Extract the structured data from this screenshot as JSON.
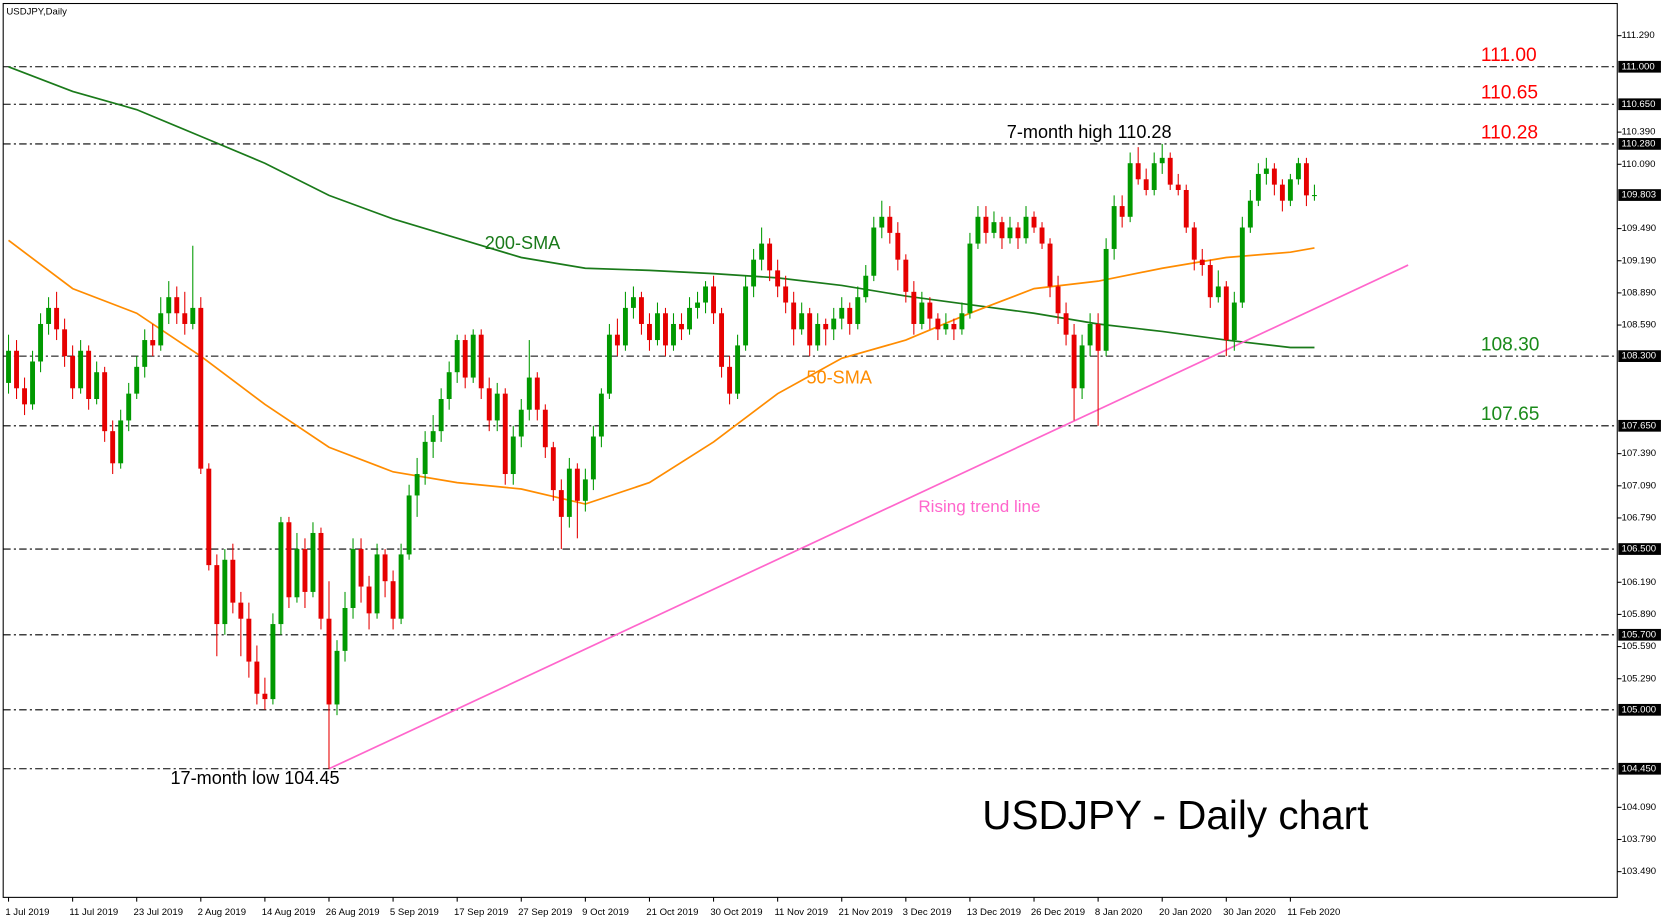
{
  "chart_data": {
    "type": "candlestick",
    "title": "USDJPY - Daily chart",
    "symbol": "USDJPY,Daily",
    "up_color": "#009900",
    "down_color": "#e60000",
    "ylim": [
      103.25,
      111.59
    ],
    "yticks": [
      {
        "value": 111.29,
        "label": "111.290"
      },
      {
        "value": 110.39,
        "label": "110.390"
      },
      {
        "value": 110.09,
        "label": "110.090"
      },
      {
        "value": 109.49,
        "label": "109.490"
      },
      {
        "value": 109.19,
        "label": "109.190"
      },
      {
        "value": 108.89,
        "label": "108.890"
      },
      {
        "value": 108.59,
        "label": "108.590"
      },
      {
        "value": 107.39,
        "label": "107.390"
      },
      {
        "value": 107.09,
        "label": "107.090"
      },
      {
        "value": 106.79,
        "label": "106.790"
      },
      {
        "value": 106.19,
        "label": "106.190"
      },
      {
        "value": 105.89,
        "label": "105.890"
      },
      {
        "value": 105.59,
        "label": "105.590"
      },
      {
        "value": 105.29,
        "label": "105.290"
      },
      {
        "value": 104.09,
        "label": "104.090"
      },
      {
        "value": 103.79,
        "label": "103.790"
      },
      {
        "value": 103.49,
        "label": "103.490"
      }
    ],
    "levels": [
      {
        "value": 111.0,
        "label": "111.000",
        "note": "111.00",
        "note_color": "#ff0000"
      },
      {
        "value": 110.65,
        "label": "110.650",
        "note": "110.65",
        "note_color": "#ff0000"
      },
      {
        "value": 110.28,
        "label": "110.280",
        "note": "110.28",
        "note_color": "#ff0000"
      },
      {
        "value": 108.3,
        "label": "108.300",
        "note": "108.30",
        "note_color": "#1a8a1a"
      },
      {
        "value": 107.65,
        "label": "107.650",
        "note": "107.65",
        "note_color": "#1a8a1a"
      },
      {
        "value": 106.5,
        "label": "106.500"
      },
      {
        "value": 105.7,
        "label": "105.700"
      },
      {
        "value": 105.0,
        "label": "105.000"
      },
      {
        "value": 104.45,
        "label": "104.450"
      }
    ],
    "current_price": {
      "value": 109.803,
      "label": "109.803"
    },
    "annotations": [
      {
        "text": "7-month high 110.28",
        "value": 110.28
      },
      {
        "text": "17-month low 104.45",
        "value": 104.45
      }
    ],
    "categories": [
      "1 Jul 2019",
      null,
      null,
      null,
      null,
      null,
      null,
      null,
      "11 Jul 2019",
      null,
      null,
      null,
      null,
      null,
      null,
      null,
      "23 Jul 2019",
      null,
      null,
      null,
      null,
      null,
      null,
      null,
      "2 Aug 2019",
      null,
      null,
      null,
      null,
      null,
      null,
      null,
      "14 Aug 2019",
      null,
      null,
      null,
      null,
      null,
      null,
      null,
      "26 Aug 2019",
      null,
      null,
      null,
      null,
      null,
      null,
      null,
      "5 Sep 2019",
      null,
      null,
      null,
      null,
      null,
      null,
      null,
      "17 Sep 2019",
      null,
      null,
      null,
      null,
      null,
      null,
      null,
      "27 Sep 2019",
      null,
      null,
      null,
      null,
      null,
      null,
      null,
      "9 Oct 2019",
      null,
      null,
      null,
      null,
      null,
      null,
      null,
      "21 Oct 2019",
      null,
      null,
      null,
      null,
      null,
      null,
      null,
      "30 Oct 2019",
      null,
      null,
      null,
      null,
      null,
      null,
      null,
      "11 Nov 2019",
      null,
      null,
      null,
      null,
      null,
      null,
      null,
      "21 Nov 2019",
      null,
      null,
      null,
      null,
      null,
      null,
      null,
      "3 Dec 2019",
      null,
      null,
      null,
      null,
      null,
      null,
      null,
      "13 Dec 2019",
      null,
      null,
      null,
      null,
      null,
      null,
      null,
      "26 Dec 2019",
      null,
      null,
      null,
      null,
      null,
      null,
      null,
      "8 Jan 2020",
      null,
      null,
      null,
      null,
      null,
      null,
      null,
      "20 Jan 2020",
      null,
      null,
      null,
      null,
      null,
      null,
      null,
      "30 Jan 2020",
      null,
      null,
      null,
      null,
      null,
      null,
      null,
      "11 Feb 2020",
      null,
      null,
      null
    ],
    "ohlc": [
      [
        108.05,
        108.5,
        107.95,
        108.35
      ],
      [
        108.35,
        108.45,
        107.9,
        108.0
      ],
      [
        108.0,
        108.1,
        107.75,
        107.85
      ],
      [
        107.85,
        108.35,
        107.8,
        108.25
      ],
      [
        108.25,
        108.7,
        108.15,
        108.6
      ],
      [
        108.6,
        108.85,
        108.5,
        108.75
      ],
      [
        108.75,
        108.9,
        108.45,
        108.55
      ],
      [
        108.55,
        108.65,
        108.2,
        108.3
      ],
      [
        108.3,
        108.4,
        107.9,
        108.0
      ],
      [
        108.0,
        108.45,
        107.95,
        108.35
      ],
      [
        108.35,
        108.4,
        107.8,
        107.9
      ],
      [
        107.9,
        108.25,
        107.85,
        108.15
      ],
      [
        108.15,
        108.2,
        107.5,
        107.6
      ],
      [
        107.6,
        107.7,
        107.2,
        107.3
      ],
      [
        107.3,
        107.8,
        107.25,
        107.7
      ],
      [
        107.7,
        108.05,
        107.6,
        107.95
      ],
      [
        107.95,
        108.3,
        107.9,
        108.2
      ],
      [
        108.2,
        108.55,
        108.1,
        108.45
      ],
      [
        108.45,
        108.6,
        108.3,
        108.4
      ],
      [
        108.4,
        108.85,
        108.35,
        108.7
      ],
      [
        108.7,
        109.0,
        108.6,
        108.85
      ],
      [
        108.85,
        108.95,
        108.6,
        108.7
      ],
      [
        108.7,
        108.9,
        108.5,
        108.6
      ],
      [
        108.6,
        109.33,
        108.55,
        108.75
      ],
      [
        108.75,
        108.85,
        107.2,
        107.25
      ],
      [
        107.25,
        107.3,
        106.3,
        106.35
      ],
      [
        106.35,
        106.45,
        105.5,
        105.8
      ],
      [
        105.8,
        106.5,
        105.7,
        106.4
      ],
      [
        106.4,
        106.55,
        105.9,
        106.0
      ],
      [
        106.0,
        106.1,
        105.5,
        105.85
      ],
      [
        105.85,
        106.0,
        105.3,
        105.45
      ],
      [
        105.45,
        105.6,
        105.05,
        105.15
      ],
      [
        105.15,
        105.3,
        105.0,
        105.1
      ],
      [
        105.1,
        105.9,
        105.05,
        105.8
      ],
      [
        105.8,
        106.8,
        105.7,
        106.75
      ],
      [
        106.75,
        106.8,
        105.95,
        106.05
      ],
      [
        106.05,
        106.65,
        106.0,
        106.5
      ],
      [
        106.5,
        106.6,
        105.95,
        106.1
      ],
      [
        106.1,
        106.75,
        106.05,
        106.65
      ],
      [
        106.65,
        106.7,
        105.75,
        105.85
      ],
      [
        105.85,
        106.2,
        104.45,
        105.05
      ],
      [
        105.05,
        105.65,
        104.95,
        105.55
      ],
      [
        105.55,
        106.1,
        105.45,
        105.95
      ],
      [
        105.95,
        106.6,
        105.85,
        106.5
      ],
      [
        106.5,
        106.6,
        106.0,
        106.15
      ],
      [
        106.15,
        106.25,
        105.75,
        105.9
      ],
      [
        105.9,
        106.55,
        105.85,
        106.45
      ],
      [
        106.45,
        106.5,
        106.05,
        106.2
      ],
      [
        106.2,
        106.3,
        105.75,
        105.85
      ],
      [
        105.85,
        106.55,
        105.8,
        106.45
      ],
      [
        106.45,
        107.1,
        106.4,
        107.0
      ],
      [
        107.0,
        107.35,
        106.8,
        107.2
      ],
      [
        107.2,
        107.6,
        107.1,
        107.5
      ],
      [
        107.5,
        107.75,
        107.35,
        107.6
      ],
      [
        107.6,
        108.0,
        107.5,
        107.9
      ],
      [
        107.9,
        108.25,
        107.8,
        108.15
      ],
      [
        108.15,
        108.5,
        108.05,
        108.45
      ],
      [
        108.45,
        108.5,
        108.0,
        108.1
      ],
      [
        108.1,
        108.55,
        108.05,
        108.5
      ],
      [
        108.5,
        108.55,
        107.9,
        108.0
      ],
      [
        108.0,
        108.1,
        107.6,
        107.7
      ],
      [
        107.7,
        108.05,
        107.6,
        107.95
      ],
      [
        107.95,
        108.0,
        107.1,
        107.2
      ],
      [
        107.2,
        107.65,
        107.1,
        107.55
      ],
      [
        107.55,
        107.9,
        107.45,
        107.8
      ],
      [
        107.8,
        108.45,
        107.7,
        108.1
      ],
      [
        108.1,
        108.15,
        107.7,
        107.8
      ],
      [
        107.8,
        107.85,
        107.35,
        107.45
      ],
      [
        107.45,
        107.5,
        106.95,
        107.05
      ],
      [
        107.05,
        107.15,
        106.5,
        106.8
      ],
      [
        106.8,
        107.35,
        106.7,
        107.25
      ],
      [
        107.25,
        107.3,
        106.6,
        106.95
      ],
      [
        106.95,
        107.25,
        106.85,
        107.15
      ],
      [
        107.15,
        107.65,
        107.05,
        107.55
      ],
      [
        107.55,
        108.0,
        107.45,
        107.95
      ],
      [
        107.95,
        108.6,
        107.9,
        108.5
      ],
      [
        108.5,
        108.65,
        108.3,
        108.4
      ],
      [
        108.4,
        108.9,
        108.35,
        108.75
      ],
      [
        108.75,
        108.95,
        108.65,
        108.85
      ],
      [
        108.85,
        108.9,
        108.5,
        108.6
      ],
      [
        108.6,
        108.7,
        108.35,
        108.45
      ],
      [
        108.45,
        108.8,
        108.4,
        108.7
      ],
      [
        108.7,
        108.75,
        108.3,
        108.4
      ],
      [
        108.4,
        108.7,
        108.35,
        108.6
      ],
      [
        108.6,
        108.7,
        108.45,
        108.55
      ],
      [
        108.55,
        108.85,
        108.5,
        108.75
      ],
      [
        108.75,
        108.9,
        108.65,
        108.8
      ],
      [
        108.8,
        109.0,
        108.7,
        108.95
      ],
      [
        108.95,
        109.05,
        108.6,
        108.7
      ],
      [
        108.7,
        108.75,
        108.1,
        108.2
      ],
      [
        108.2,
        108.3,
        107.85,
        107.95
      ],
      [
        107.95,
        108.5,
        107.9,
        108.4
      ],
      [
        108.4,
        109.05,
        108.35,
        108.95
      ],
      [
        108.95,
        109.3,
        108.85,
        109.2
      ],
      [
        109.2,
        109.5,
        109.1,
        109.35
      ],
      [
        109.35,
        109.4,
        109.0,
        109.1
      ],
      [
        109.1,
        109.2,
        108.85,
        108.95
      ],
      [
        108.95,
        109.05,
        108.7,
        108.8
      ],
      [
        108.8,
        108.9,
        108.4,
        108.55
      ],
      [
        108.55,
        108.8,
        108.5,
        108.7
      ],
      [
        108.7,
        108.75,
        108.3,
        108.4
      ],
      [
        108.4,
        108.7,
        108.35,
        108.6
      ],
      [
        108.6,
        108.65,
        108.4,
        108.55
      ],
      [
        108.55,
        108.75,
        108.45,
        108.65
      ],
      [
        108.65,
        108.85,
        108.55,
        108.75
      ],
      [
        108.75,
        108.8,
        108.5,
        108.6
      ],
      [
        108.6,
        108.95,
        108.55,
        108.85
      ],
      [
        108.85,
        109.15,
        108.8,
        109.05
      ],
      [
        109.05,
        109.6,
        109.0,
        109.5
      ],
      [
        109.5,
        109.75,
        109.4,
        109.6
      ],
      [
        109.6,
        109.7,
        109.35,
        109.45
      ],
      [
        109.45,
        109.55,
        109.1,
        109.2
      ],
      [
        109.2,
        109.25,
        108.8,
        108.9
      ],
      [
        108.9,
        109.0,
        108.5,
        108.6
      ],
      [
        108.6,
        108.9,
        108.55,
        108.8
      ],
      [
        108.8,
        108.85,
        108.55,
        108.65
      ],
      [
        108.65,
        108.7,
        108.45,
        108.55
      ],
      [
        108.55,
        108.7,
        108.5,
        108.6
      ],
      [
        108.6,
        108.65,
        108.45,
        108.55
      ],
      [
        108.55,
        108.8,
        108.5,
        108.7
      ],
      [
        108.7,
        109.45,
        108.65,
        109.35
      ],
      [
        109.35,
        109.7,
        109.3,
        109.6
      ],
      [
        109.6,
        109.7,
        109.35,
        109.45
      ],
      [
        109.45,
        109.65,
        109.4,
        109.55
      ],
      [
        109.55,
        109.6,
        109.3,
        109.4
      ],
      [
        109.4,
        109.6,
        109.35,
        109.5
      ],
      [
        109.5,
        109.55,
        109.3,
        109.4
      ],
      [
        109.4,
        109.7,
        109.35,
        109.6
      ],
      [
        109.6,
        109.65,
        109.45,
        109.5
      ],
      [
        109.5,
        109.55,
        109.3,
        109.35
      ],
      [
        109.35,
        109.4,
        108.85,
        108.95
      ],
      [
        108.95,
        109.05,
        108.6,
        108.7
      ],
      [
        108.7,
        108.8,
        108.4,
        108.5
      ],
      [
        108.5,
        108.6,
        107.7,
        108.0
      ],
      [
        108.0,
        108.5,
        107.9,
        108.4
      ],
      [
        108.4,
        108.7,
        108.3,
        108.6
      ],
      [
        108.6,
        108.7,
        107.65,
        108.35
      ],
      [
        108.35,
        109.4,
        108.3,
        109.3
      ],
      [
        109.3,
        109.8,
        109.2,
        109.7
      ],
      [
        109.7,
        109.8,
        109.5,
        109.6
      ],
      [
        109.6,
        110.2,
        109.55,
        110.1
      ],
      [
        110.1,
        110.25,
        109.9,
        109.95
      ],
      [
        109.95,
        110.05,
        109.8,
        109.85
      ],
      [
        109.85,
        110.2,
        109.8,
        110.1
      ],
      [
        110.1,
        110.28,
        110.0,
        110.15
      ],
      [
        110.15,
        110.2,
        109.85,
        109.9
      ],
      [
        109.9,
        110.0,
        109.8,
        109.85
      ],
      [
        109.85,
        109.9,
        109.45,
        109.5
      ],
      [
        109.5,
        109.55,
        109.1,
        109.2
      ],
      [
        109.2,
        109.3,
        109.05,
        109.15
      ],
      [
        109.15,
        109.2,
        108.75,
        108.85
      ],
      [
        108.85,
        109.1,
        108.8,
        108.95
      ],
      [
        108.95,
        109.0,
        108.3,
        108.45
      ],
      [
        108.45,
        108.9,
        108.35,
        108.8
      ],
      [
        108.8,
        109.6,
        108.75,
        109.5
      ],
      [
        109.5,
        109.85,
        109.45,
        109.75
      ],
      [
        109.75,
        110.1,
        109.7,
        110.0
      ],
      [
        110.0,
        110.15,
        109.9,
        110.05
      ],
      [
        110.05,
        110.1,
        109.8,
        109.9
      ],
      [
        109.9,
        109.95,
        109.65,
        109.75
      ],
      [
        109.75,
        110.0,
        109.7,
        109.95
      ],
      [
        109.95,
        110.15,
        109.9,
        110.1
      ],
      [
        110.1,
        110.15,
        109.7,
        109.8
      ],
      [
        109.8,
        109.9,
        109.75,
        109.803
      ]
    ],
    "series": [
      {
        "name": "200-SMA",
        "color": "#1a7a1a",
        "x": [
          0,
          8,
          16,
          24,
          32,
          40,
          48,
          56,
          64,
          72,
          80,
          88,
          96,
          104,
          112,
          120,
          128,
          136,
          144,
          152,
          160,
          163
        ],
        "values": [
          111.0,
          110.77,
          110.6,
          110.35,
          110.1,
          109.8,
          109.58,
          109.4,
          109.22,
          109.12,
          109.1,
          109.07,
          109.03,
          108.96,
          108.86,
          108.78,
          108.7,
          108.6,
          108.53,
          108.45,
          108.38,
          108.38
        ]
      },
      {
        "name": "50-SMA",
        "color": "#ff8c00",
        "x": [
          0,
          8,
          16,
          24,
          32,
          40,
          48,
          56,
          64,
          72,
          80,
          88,
          96,
          104,
          112,
          120,
          128,
          136,
          144,
          152,
          160,
          163
        ],
        "values": [
          109.38,
          108.93,
          108.7,
          108.3,
          107.85,
          107.45,
          107.22,
          107.12,
          107.06,
          106.92,
          107.12,
          107.5,
          107.95,
          108.28,
          108.45,
          108.7,
          108.93,
          109.0,
          109.12,
          109.22,
          109.27,
          109.31
        ]
      },
      {
        "name": "Rising trend line",
        "color": "#ff66cc",
        "x": [
          40,
          174.7
        ],
        "values": [
          104.45,
          109.15
        ]
      }
    ]
  }
}
